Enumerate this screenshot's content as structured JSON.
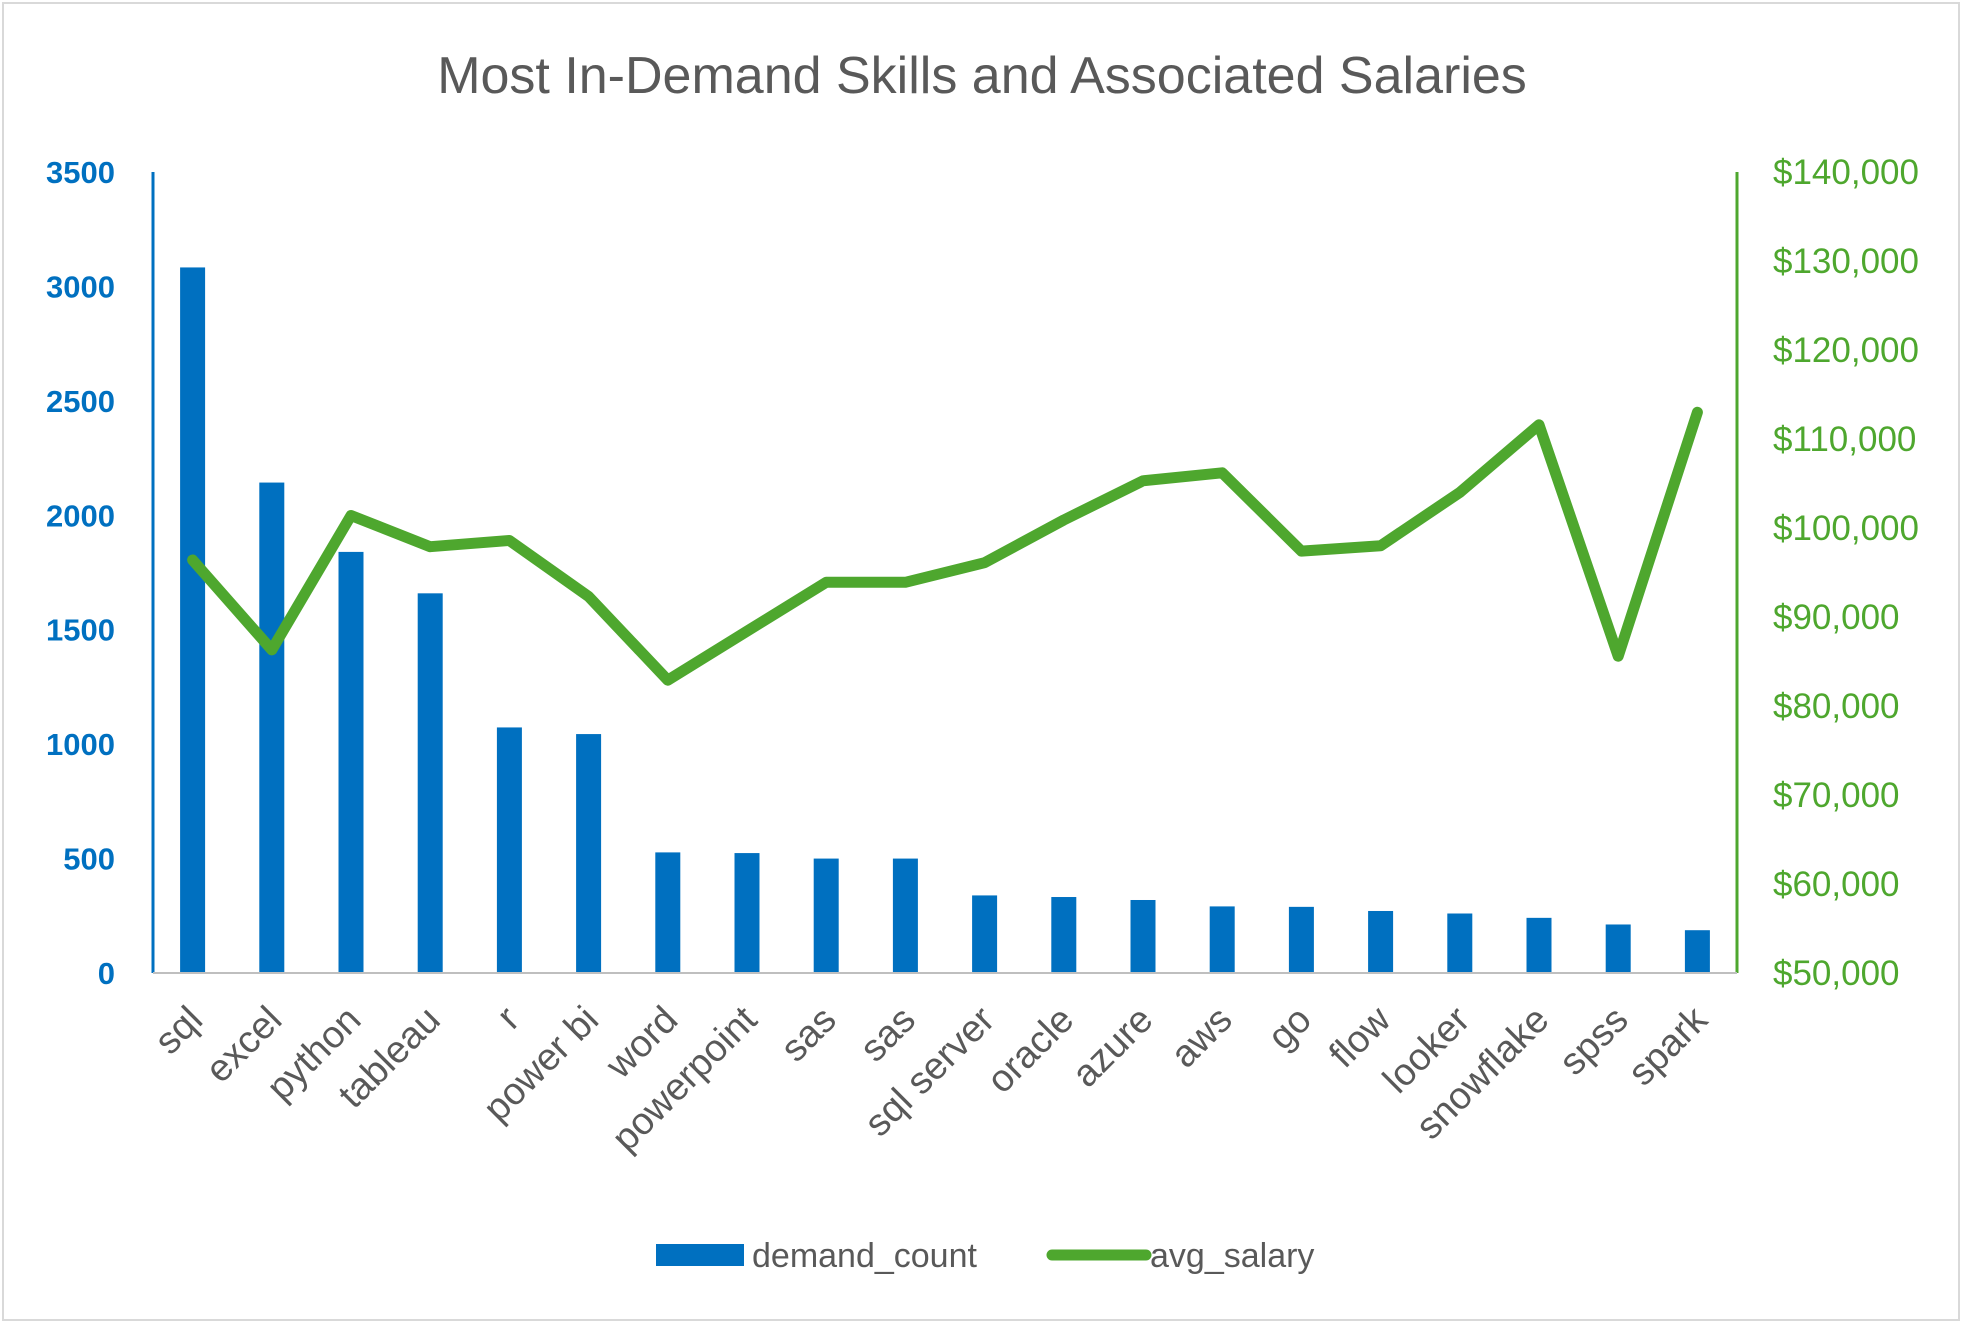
{
  "chart_data": {
    "type": "bar",
    "title": "Most In-Demand Skills and Associated Salaries",
    "categories": [
      "sql",
      "excel",
      "python",
      "tableau",
      "r",
      "power bi",
      "word",
      "powerpoint",
      "sas",
      "sas",
      "sql server",
      "oracle",
      "azure",
      "aws",
      "go",
      "flow",
      "looker",
      "snowflake",
      "spss",
      "spark"
    ],
    "series": [
      {
        "name": "demand_count",
        "type": "bar",
        "axis": "left",
        "color": "#0070c0",
        "values": [
          3083,
          2143,
          1840,
          1659,
          1073,
          1044,
          527,
          524,
          500,
          500,
          339,
          332,
          319,
          291,
          289,
          271,
          260,
          241,
          212,
          187
        ]
      },
      {
        "name": "avg_salary",
        "type": "line",
        "axis": "right",
        "color": "#4ea72e",
        "values": [
          96400,
          86300,
          101400,
          97900,
          98600,
          92300,
          82900,
          88400,
          93900,
          93900,
          96100,
          100900,
          105300,
          106200,
          97400,
          98000,
          104000,
          111600,
          85600,
          113000
        ]
      }
    ],
    "y_left": {
      "min": 0,
      "max": 3500,
      "ticks": [
        "0",
        "500",
        "1000",
        "1500",
        "2000",
        "2500",
        "3000",
        "3500"
      ]
    },
    "y_right": {
      "min": 50000,
      "max": 140000,
      "ticks": [
        "$50,000",
        "$60,000",
        "$70,000",
        "$80,000",
        "$90,000",
        "$100,000",
        "$110,000",
        "$120,000",
        "$130,000",
        "$140,000"
      ]
    },
    "grid": false,
    "legend_position": "bottom"
  }
}
